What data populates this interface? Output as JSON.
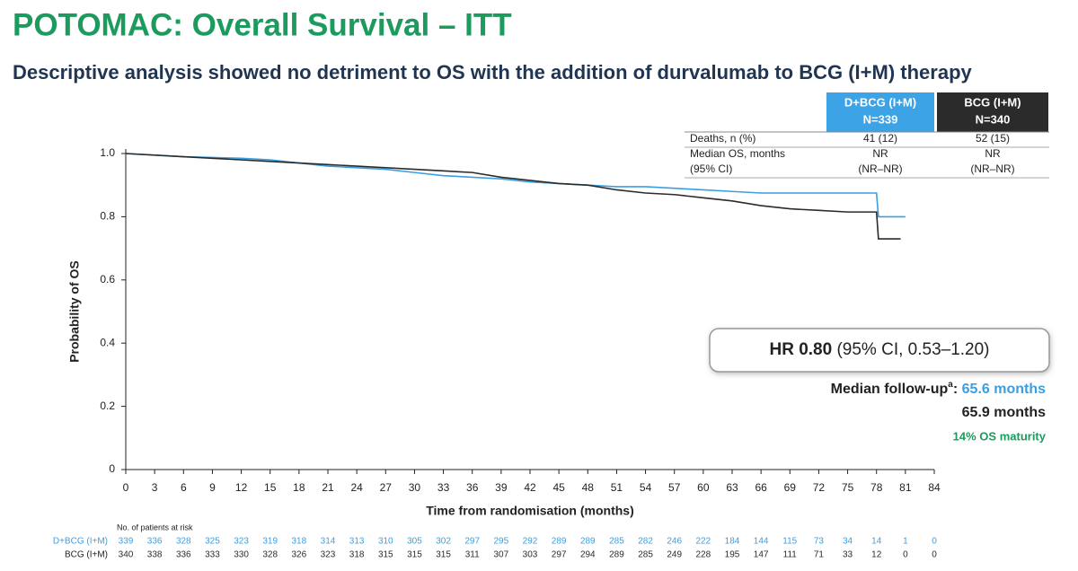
{
  "title": "POTOMAC: Overall Survival – ITT",
  "subtitle": "Descriptive analysis showed no detriment to OS with the addition of durvalumab to BCG (I+M) therapy",
  "summary_table": {
    "header_counts": [
      "N=339",
      "N=340"
    ],
    "rows": [
      {
        "label": [
          "Deaths, n (%)"
        ],
        "values": [
          [
            "41 (12)"
          ],
          [
            "52 (15)"
          ]
        ]
      },
      {
        "label": [
          "Median OS, months",
          "(95% CI)"
        ],
        "values": [
          [
            "NR",
            "(NR–NR)"
          ],
          [
            "NR",
            "(NR–NR)"
          ]
        ]
      }
    ]
  },
  "chart_data": {
    "type": "line",
    "xlabel": "Time from randomisation (months)",
    "ylabel": "Probability of OS",
    "xlim": [
      0,
      84
    ],
    "ylim": [
      0,
      1
    ],
    "xticks": [
      0,
      3,
      6,
      9,
      12,
      15,
      18,
      21,
      24,
      27,
      30,
      33,
      36,
      39,
      42,
      45,
      48,
      51,
      54,
      57,
      60,
      63,
      66,
      69,
      72,
      75,
      78,
      81,
      84
    ],
    "yticks": [
      0,
      0.2,
      0.4,
      0.6,
      0.8,
      {
        "value": 1,
        "label": "1.0"
      }
    ],
    "series": [
      {
        "name": "D+BCG (I+M)",
        "color": "#3a9fe2",
        "x": [
          0,
          6,
          12,
          15,
          18,
          21,
          24,
          27,
          30,
          33,
          36,
          39,
          42,
          45,
          48,
          51,
          54,
          57,
          60,
          63,
          66,
          69,
          72,
          75,
          78,
          78.2,
          81
        ],
        "y": [
          1,
          0.99,
          0.985,
          0.98,
          0.97,
          0.96,
          0.955,
          0.95,
          0.94,
          0.93,
          0.925,
          0.92,
          0.91,
          0.905,
          0.9,
          0.895,
          0.895,
          0.89,
          0.885,
          0.88,
          0.875,
          0.875,
          0.875,
          0.875,
          0.875,
          0.8,
          0.8
        ]
      },
      {
        "name": "BCG (I+M)",
        "color": "#2b2b2b",
        "x": [
          0,
          6,
          9,
          15,
          18,
          21,
          24,
          27,
          30,
          33,
          36,
          39,
          42,
          45,
          48,
          51,
          54,
          57,
          60,
          63,
          66,
          69,
          72,
          75,
          78,
          78.2,
          80.5
        ],
        "y": [
          1,
          0.99,
          0.985,
          0.975,
          0.97,
          0.965,
          0.96,
          0.955,
          0.95,
          0.945,
          0.94,
          0.925,
          0.915,
          0.905,
          0.9,
          0.885,
          0.875,
          0.87,
          0.86,
          0.85,
          0.835,
          0.825,
          0.82,
          0.815,
          0.815,
          0.73,
          0.73
        ]
      }
    ]
  },
  "hr_box": {
    "bold": "HR 0.80",
    "rest": "(95% CI, 0.53–1.20)"
  },
  "follow_up": {
    "prefix": "Median follow-up",
    "note": "a",
    "suffix": ":",
    "values": [
      "65.6 months",
      "65.9 months"
    ],
    "maturity": "14% OS maturity"
  },
  "risk_table": {
    "title": "No. of patients at risk",
    "counts": [
      [
        339,
        336,
        328,
        325,
        323,
        319,
        318,
        314,
        313,
        310,
        305,
        302,
        297,
        295,
        292,
        289,
        289,
        285,
        282,
        246,
        222,
        184,
        144,
        115,
        73,
        34,
        14,
        1,
        0
      ],
      [
        340,
        338,
        336,
        333,
        330,
        328,
        326,
        323,
        318,
        315,
        315,
        315,
        311,
        307,
        303,
        297,
        294,
        289,
        285,
        249,
        228,
        195,
        147,
        111,
        71,
        33,
        12,
        0,
        0
      ]
    ]
  }
}
